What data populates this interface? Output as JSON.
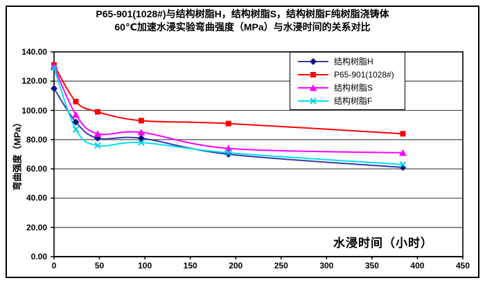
{
  "chart": {
    "title_line1": "P65-901(1028#)与结构树脂H，结构树脂S，结构树脂F纯树脂浇铸体",
    "title_line2": "60℃加速水浸实验弯曲强度（MPa）与水浸时间的关系对比"
  },
  "chart_data": {
    "type": "line",
    "title": "P65-901(1028#)与结构树脂H，结构树脂S，结构树脂F纯树脂浇铸体 60℃加速水浸实验弯曲强度（MPa）与水浸时间的关系对比",
    "xlabel": "水浸时间（小时）",
    "ylabel": "弯曲强度（MPa）",
    "x": [
      0,
      24,
      48,
      96,
      192,
      384
    ],
    "series": [
      {
        "name": "结构树脂H",
        "marker": "diamond",
        "color": "#3939ac",
        "marker_color": "#101080",
        "values": [
          115,
          92,
          81,
          81,
          70,
          61
        ]
      },
      {
        "name": "P65-901(1028#)",
        "marker": "square",
        "color": "#ff0000",
        "marker_color": "#ff0000",
        "values": [
          131,
          106,
          99,
          93,
          91,
          84
        ]
      },
      {
        "name": "结构树脂S",
        "marker": "triangle",
        "color": "#ff00ff",
        "marker_color": "#ff00ff",
        "values": [
          130,
          97,
          84,
          85,
          74,
          71
        ]
      },
      {
        "name": "结构树脂F",
        "marker": "x",
        "color": "#00e0f0",
        "marker_color": "#00cce0",
        "values": [
          129,
          87,
          76,
          78,
          71,
          63
        ]
      }
    ],
    "xlim": [
      0,
      450
    ],
    "ylim": [
      0,
      140
    ],
    "x_ticks": [
      0,
      50,
      100,
      150,
      200,
      250,
      300,
      350,
      400,
      450
    ],
    "x_tick_labels": [
      "0",
      "50",
      "100",
      "150",
      "200",
      "250",
      "300",
      "350",
      "400",
      "450"
    ],
    "y_ticks": [
      0,
      20,
      40,
      60,
      80,
      100,
      120,
      140
    ],
    "y_tick_labels": [
      "0.00",
      "20.00",
      "40.00",
      "60.00",
      "80.00",
      "100.00",
      "120.00",
      "140.00"
    ],
    "grid": "horizontal",
    "smoothed_lines": true,
    "legend_position": "top-right-inside",
    "colors": {
      "grid": "#4d4d4d",
      "axis": "#000000",
      "background": "#ffffff"
    }
  }
}
